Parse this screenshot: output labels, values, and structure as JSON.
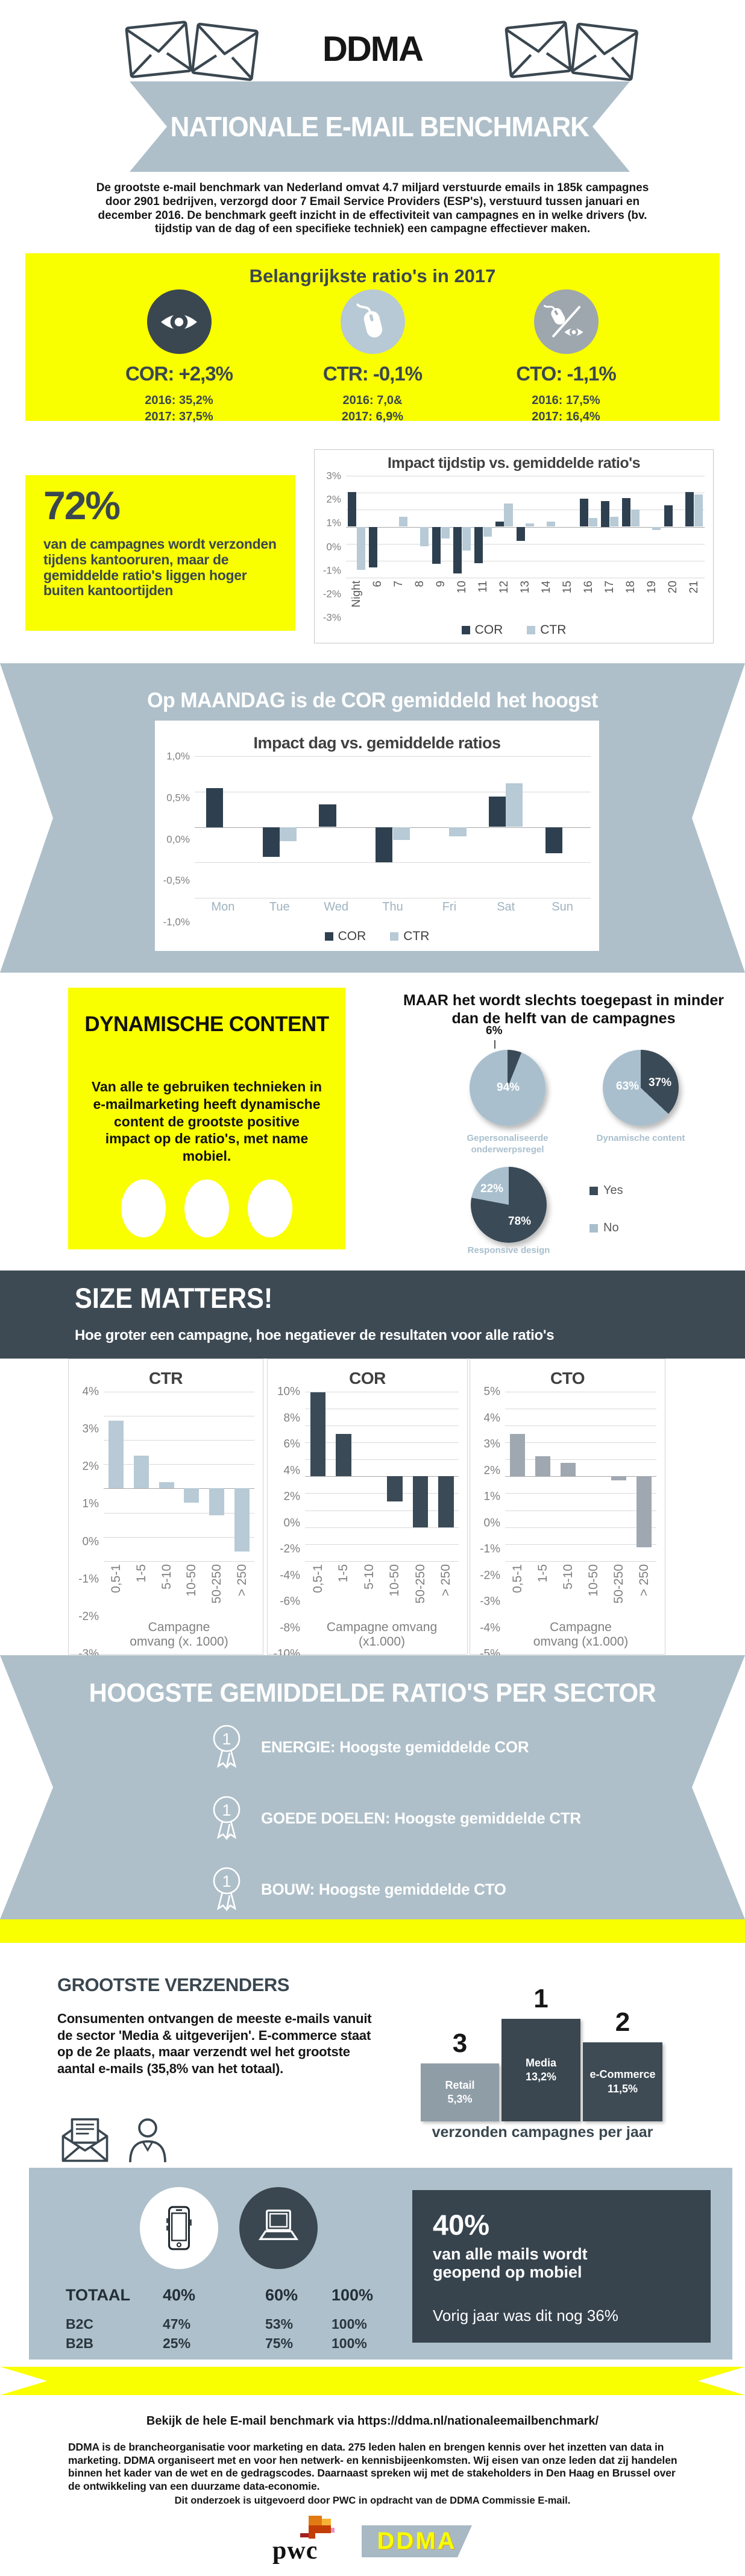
{
  "colors": {
    "yellow": "#FAFF00",
    "navy": "#3A4750",
    "band": "#AEBFC9",
    "dark_band": "#3D4A54",
    "bar_dark": "#2E4050",
    "bar_light": "#B7CAD6",
    "bar_gray": "#9FA8B0",
    "pie_dark": "#3A4A57",
    "pie_light": "#A9BFCD",
    "podium_retail": "#8F9DA7",
    "podium_media": "#3A4750",
    "podium_ecom": "#3E4B55"
  },
  "header": {
    "brand": "DDMA",
    "banner": "NATIONALE E-MAIL BENCHMARK"
  },
  "intro": "De grootste e-mail benchmark van Nederland omvat 4.7 miljard verstuurde emails in 185k campagnes door 2901 bedrijven, verzorgd door 7 Email Service Providers (ESP's), verstuurd tussen januari en december 2016. De benchmark geeft inzicht in de effectiviteit van campagnes en in welke drivers (bv. tijdstip van de dag of een specifieke techniek) een campagne effectiever maken.",
  "ratios": {
    "title": "Belangrijkste ratio's in 2017",
    "items": [
      {
        "icon": "eye-icon",
        "label": "COR: +2,3%",
        "line2016": "2016: 35,2%",
        "line2017": "2017: 37,5%"
      },
      {
        "icon": "mouse-icon",
        "label": "CTR: -0,1%",
        "line2016": "2016: 7,0&",
        "line2017": "2017: 6,9%"
      },
      {
        "icon": "mouse-eye-ratio-icon",
        "label": "CTO: -1,1%",
        "line2016": "2016: 17,5%",
        "line2017": "2017: 16,4%"
      }
    ]
  },
  "office_hours": {
    "stat": "72%",
    "text": "van de campagnes wordt verzonden tijdens kantooruren, maar de gemiddelde ratio's liggen hoger buiten kantoortijden"
  },
  "monday": {
    "title": "Op MAANDAG is de COR gemiddeld het hoogst"
  },
  "dynamic": {
    "box_title": "DYNAMISCHE CONTENT",
    "box_text": "Van alle te gebruiken technieken in e-mailmarketing heeft dynamische content de grootste positive impact op de ratio's, met name mobiel."
  },
  "size": {
    "title": "SIZE MATTERS!",
    "subtitle": "Hoe groter een campagne, hoe negatiever de resultaten voor alle ratio's"
  },
  "sector": {
    "title": "HOOGSTE GEMIDDELDE RATIO'S PER SECTOR",
    "items": [
      {
        "rank": "1",
        "text": "ENERGIE: Hoogste gemiddelde COR"
      },
      {
        "rank": "1",
        "text": "GOEDE DOELEN: Hoogste gemiddelde CTR"
      },
      {
        "rank": "1",
        "text": "BOUW: Hoogste gemiddelde CTO"
      }
    ]
  },
  "senders": {
    "title": "GROOTSTE VERZENDERS",
    "text": "Consumenten ontvangen de meeste e-mails vanuit de sector 'Media & uitgeverijen'. E-commerce staat op de 2e plaats, maar verzendt wel het grootste aantal e-mails (35,8% van het totaal)."
  },
  "mobile": {
    "table": {
      "header": [
        "TOTAAL",
        "40%",
        "60%",
        "100%"
      ],
      "rows": [
        [
          "B2C",
          "47%",
          "53%",
          "100%"
        ],
        [
          "B2B",
          "25%",
          "75%",
          "100%"
        ]
      ]
    },
    "stat": "40%",
    "stat_text": "van alle mails wordt geopend op mobiel",
    "prev": "Vorig jaar was dit nog 36%"
  },
  "footer": {
    "link": "Bekijk de hele E-mail benchmark via https://ddma.nl/nationaleemailbenchmark/",
    "about": "DDMA is de brancheorganisatie voor marketing en data. 275 leden halen en brengen kennis over het inzetten van data in marketing. DDMA organiseert met en voor hen netwerk- en kennisbijeenkomsten. Wij eisen van onze leden dat zij handelen binnen het kader van de wet en de gedragscodes. Daarnaast spreken wij met de stakeholders in Den Haag en Brussel over de ontwikkeling van een duurzame data-economie.",
    "note": "Dit onderzoek is uitgevoerd door PWC in opdracht van de DDMA Commissie E-mail.",
    "pwc": "pwc",
    "ddma": "DDMA"
  },
  "chart_data": [
    {
      "id": "impact-time",
      "type": "bar",
      "title": "Impact tijdstip vs. gemiddelde ratio's",
      "categories": [
        "Night",
        "6",
        "7",
        "8",
        "9",
        "10",
        "11",
        "12",
        "13",
        "14",
        "15",
        "16",
        "17",
        "18",
        "19",
        "20",
        "21"
      ],
      "series": [
        {
          "name": "COR",
          "values": [
            2.05,
            -2.4,
            0,
            0,
            -2.2,
            -2.75,
            -2.15,
            0.3,
            -0.85,
            0,
            0,
            1.65,
            1.5,
            1.7,
            0,
            1.25,
            2.05
          ]
        },
        {
          "name": "CTR",
          "values": [
            -2.55,
            0,
            0.6,
            -1.15,
            -0.7,
            -1.4,
            -0.6,
            1.35,
            0.2,
            0.3,
            0,
            0.5,
            0.6,
            1.0,
            -0.2,
            0,
            1.9
          ]
        }
      ],
      "ylim": [
        -3,
        3
      ],
      "grid": true,
      "legend_position": "bottom",
      "yticks": [
        {
          "v": 3,
          "label": "3%"
        },
        {
          "v": 2,
          "label": "2%"
        },
        {
          "v": 1,
          "label": "1%"
        },
        {
          "v": 0,
          "label": "0%"
        },
        {
          "v": -1,
          "label": "-1%"
        },
        {
          "v": -2,
          "label": "-2%"
        },
        {
          "v": -3,
          "label": "-3%"
        }
      ]
    },
    {
      "id": "impact-day",
      "type": "bar",
      "title": "Impact dag vs. gemiddelde ratios",
      "categories": [
        "Mon",
        "Tue",
        "Wed",
        "Thu",
        "Fri",
        "Sat",
        "Sun"
      ],
      "series": [
        {
          "name": "COR",
          "values": [
            0.55,
            -0.42,
            0.32,
            -0.5,
            0,
            0.43,
            -0.37
          ]
        },
        {
          "name": "CTR",
          "values": [
            0,
            -0.2,
            0,
            -0.18,
            -0.13,
            0.62,
            0
          ]
        }
      ],
      "ylim": [
        -1,
        1
      ],
      "grid": true,
      "legend_position": "bottom",
      "yticks": [
        {
          "v": 1,
          "label": "1,0%"
        },
        {
          "v": 0.5,
          "label": "0,5%"
        },
        {
          "v": 0,
          "label": "0,0%"
        },
        {
          "v": -0.5,
          "label": "-0,5%"
        },
        {
          "v": -1,
          "label": "-1,0%"
        }
      ]
    },
    {
      "id": "techniques",
      "type": "pie",
      "title": "MAAR het wordt slechts toegepast in minder dan de helft van de campagnes",
      "legend": [
        "Yes",
        "No"
      ],
      "pies": [
        {
          "label": "Gepersonaliseerde onderwerpsregel",
          "yes": 6,
          "no": 94,
          "yes_text": "6%",
          "no_text": "94%"
        },
        {
          "label": "Dynamische content",
          "yes": 37,
          "no": 63,
          "yes_text": "37%",
          "no_text": "63%"
        },
        {
          "label": "Responsive design",
          "yes": 78,
          "no": 22,
          "yes_text": "78%",
          "no_text": "22%"
        }
      ]
    },
    {
      "id": "size-ctr",
      "type": "bar",
      "title": "CTR",
      "xlabel": "Campagne omvang (x. 1000)",
      "categories": [
        "0,5-1",
        "1-5",
        "5-10",
        "10-50",
        "50-250",
        "> 250"
      ],
      "values": [
        2.8,
        1.35,
        0.25,
        -0.6,
        -1.1,
        -2.6
      ],
      "ylim": [
        -3,
        4
      ],
      "grid": true,
      "yticks": [
        {
          "v": 4,
          "label": "4%"
        },
        {
          "v": 3,
          "label": "3%"
        },
        {
          "v": 2,
          "label": "2%"
        },
        {
          "v": 1,
          "label": "1%"
        },
        {
          "v": 0,
          "label": "0%"
        },
        {
          "v": -1,
          "label": "-1%"
        },
        {
          "v": -2,
          "label": "-2%"
        },
        {
          "v": -3,
          "label": "-3%"
        }
      ]
    },
    {
      "id": "size-cor",
      "type": "bar",
      "title": "COR",
      "xlabel": "Campagne omvang (x1.000)",
      "categories": [
        "0,5-1",
        "1-5",
        "5-10",
        "10-50",
        "50-250",
        "> 250"
      ],
      "values": [
        9.9,
        5,
        0,
        -3,
        -6,
        -6
      ],
      "ylim": [
        -10,
        10
      ],
      "grid": true,
      "yticks": [
        {
          "v": 10,
          "label": "10%"
        },
        {
          "v": 8,
          "label": "8%"
        },
        {
          "v": 6,
          "label": "6%"
        },
        {
          "v": 4,
          "label": "4%"
        },
        {
          "v": 2,
          "label": "2%"
        },
        {
          "v": 0,
          "label": "0%"
        },
        {
          "v": -2,
          "label": "-2%"
        },
        {
          "v": -4,
          "label": "-4%"
        },
        {
          "v": -6,
          "label": "-6%"
        },
        {
          "v": -8,
          "label": "-8%"
        },
        {
          "v": -10,
          "label": "-10%"
        }
      ]
    },
    {
      "id": "size-cto",
      "type": "bar",
      "title": "CTO",
      "xlabel": "Campagne omvang (x1.000)",
      "categories": [
        "0,5-1",
        "1-5",
        "5-10",
        "10-50",
        "50-250",
        "> 250"
      ],
      "values": [
        2.5,
        1.2,
        0.8,
        0,
        -0.25,
        -4.2
      ],
      "ylim": [
        -5,
        5
      ],
      "grid": true,
      "yticks": [
        {
          "v": 5,
          "label": "5%"
        },
        {
          "v": 4,
          "label": "4%"
        },
        {
          "v": 3,
          "label": "3%"
        },
        {
          "v": 2,
          "label": "2%"
        },
        {
          "v": 1,
          "label": "1%"
        },
        {
          "v": 0,
          "label": "0%"
        },
        {
          "v": -1,
          "label": "-1%"
        },
        {
          "v": -2,
          "label": "-2%"
        },
        {
          "v": -3,
          "label": "-3%"
        },
        {
          "v": -4,
          "label": "-4%"
        },
        {
          "v": -5,
          "label": "-5%"
        }
      ]
    },
    {
      "id": "senders-podium",
      "type": "bar",
      "title": "verzonden campagnes per jaar",
      "categories": [
        "Retail",
        "Media",
        "e-Commerce"
      ],
      "values": [
        5.3,
        13.2,
        11.5
      ],
      "value_labels": [
        "5,3%",
        "13,2%",
        "11,5%"
      ],
      "ranks": [
        "3",
        "1",
        "2"
      ]
    }
  ]
}
